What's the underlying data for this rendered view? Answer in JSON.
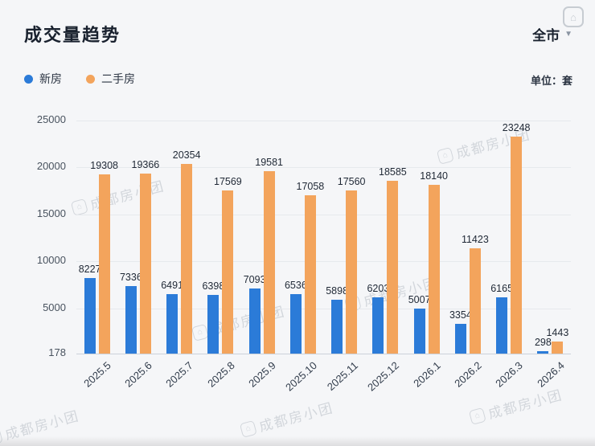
{
  "header": {
    "title": "成交量趋势",
    "scope_label": "全市",
    "unit_label": "单位：套"
  },
  "legend": [
    {
      "label": "新房",
      "color": "#2b7bd8"
    },
    {
      "label": "二手房",
      "color": "#f3a45c"
    }
  ],
  "watermark": {
    "text": "成都房小团"
  },
  "chart_data": {
    "type": "bar",
    "title": "成交量趋势",
    "categories": [
      "2025.5",
      "2025.6",
      "2025.7",
      "2025.8",
      "2025.9",
      "2025.10",
      "2025.11",
      "2025.12",
      "2026.1",
      "2026.2",
      "2026.3",
      "2026.4"
    ],
    "series": [
      {
        "name": "新房",
        "color": "#2b7bd8",
        "values": [
          8227,
          7336,
          6491,
          6398,
          7093,
          6536,
          5898,
          6203,
          5007,
          3354,
          6165,
          298
        ]
      },
      {
        "name": "二手房",
        "color": "#f3a45c",
        "values": [
          19308,
          19366,
          20354,
          17569,
          19581,
          17058,
          17560,
          18585,
          18140,
          11423,
          23248,
          1443
        ]
      }
    ],
    "y_ticks": [
      178,
      5000,
      10000,
      15000,
      20000,
      25000
    ],
    "ylim": [
      178,
      25000
    ],
    "xlabel": "",
    "ylabel": "",
    "grid": true,
    "legend_position": "top-left",
    "value_labels": true
  }
}
